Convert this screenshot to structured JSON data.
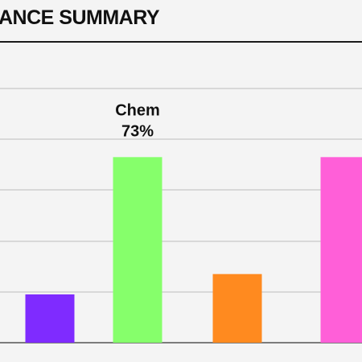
{
  "title": "ANCE SUMMARY",
  "chart_data": {
    "type": "bar",
    "title": "ANCE SUMMARY",
    "categories": [
      "",
      "Chem",
      "",
      ""
    ],
    "values": [
      19,
      73,
      27,
      73
    ],
    "colors": [
      "#7f2bff",
      "#86ff6b",
      "#ff8a1f",
      "#ff5fd8"
    ],
    "annotation": {
      "category": "Chem",
      "value_label": "73%"
    },
    "ylim": [
      0,
      100
    ],
    "grid": true
  }
}
